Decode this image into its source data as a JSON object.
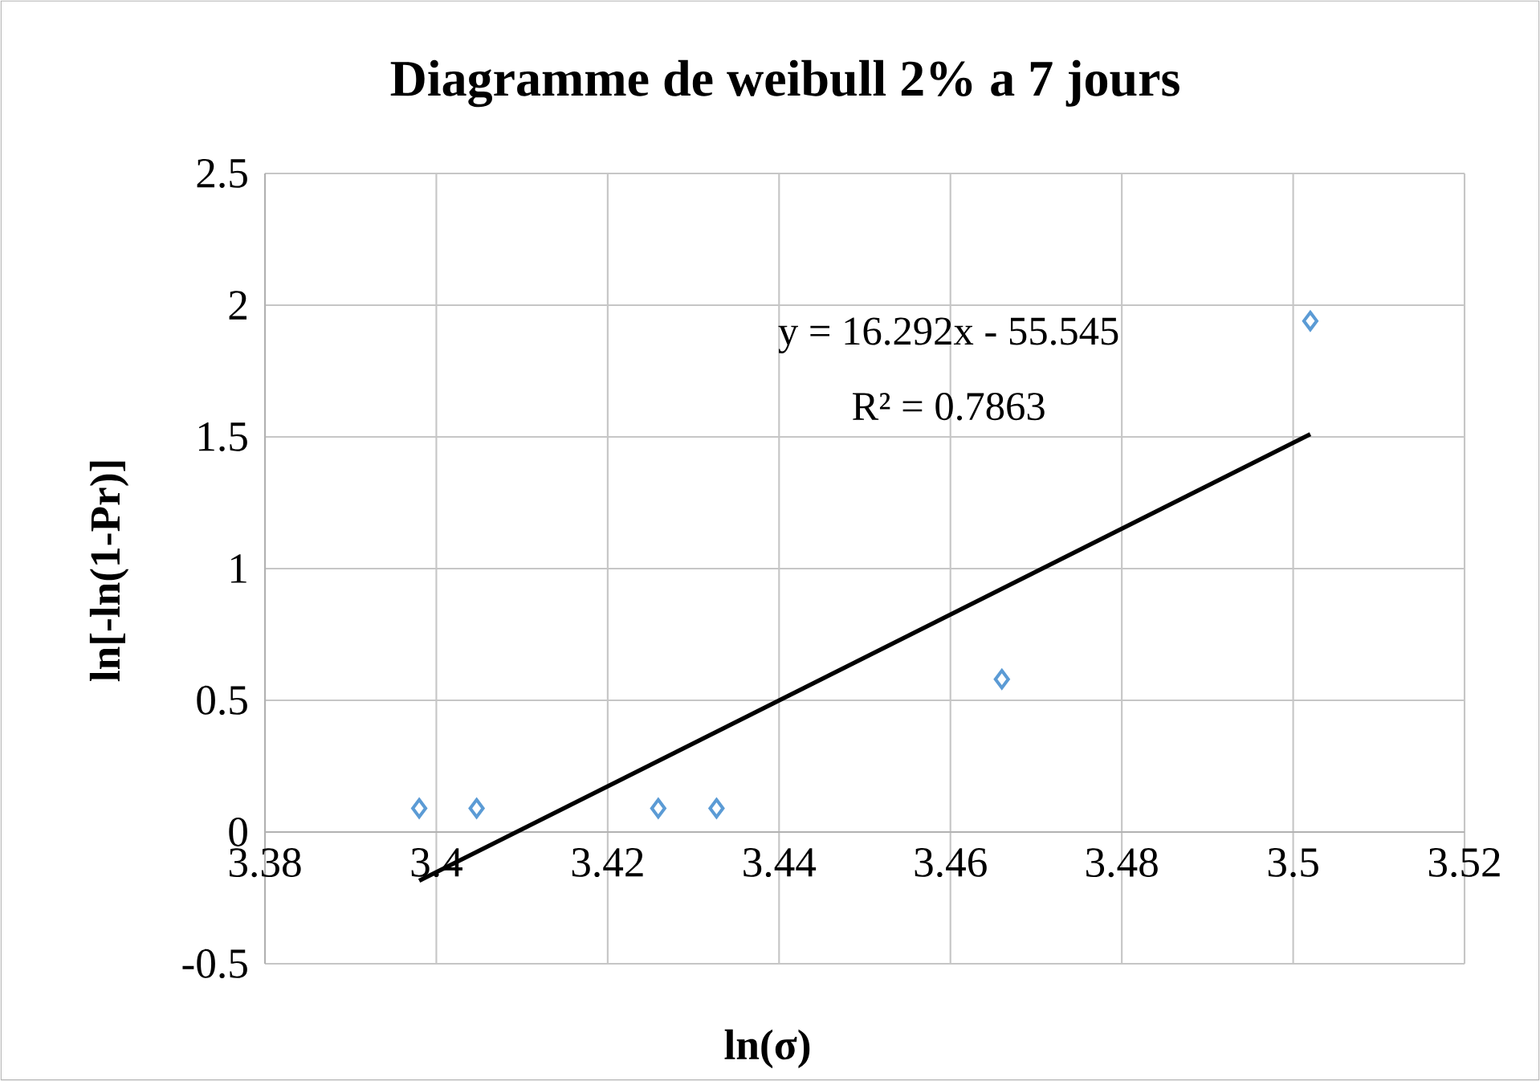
{
  "chart_data": {
    "type": "scatter",
    "title": "Diagramme de weibull 2% a 7 jours",
    "xlabel": "ln(σ)",
    "ylabel": "ln[-ln(1-Pr)]",
    "x": [
      3.398,
      3.4047,
      3.4259,
      3.4327,
      3.466,
      3.502
    ],
    "series": [
      {
        "color": "#5b9bd5",
        "marker": "diamond",
        "values": [
          0.09,
          0.09,
          0.09,
          0.09,
          0.58,
          1.94
        ]
      },
      {
        "type": "line",
        "color": "#000000",
        "marker": "none",
        "x": [
          3.398,
          3.502
        ],
        "values": [
          -0.185,
          1.51
        ]
      }
    ],
    "annotations": [
      "y = 16.292x - 55.545",
      "R² = 0.7863"
    ],
    "xlim": [
      3.38,
      3.52
    ],
    "xticks": [
      3.38,
      3.4,
      3.42,
      3.44,
      3.46,
      3.48,
      3.5,
      3.52
    ],
    "ylim": [
      -0.5,
      2.5
    ],
    "yticks": [
      -0.5,
      0,
      0.5,
      1,
      1.5,
      2,
      2.5
    ],
    "grid": true
  }
}
